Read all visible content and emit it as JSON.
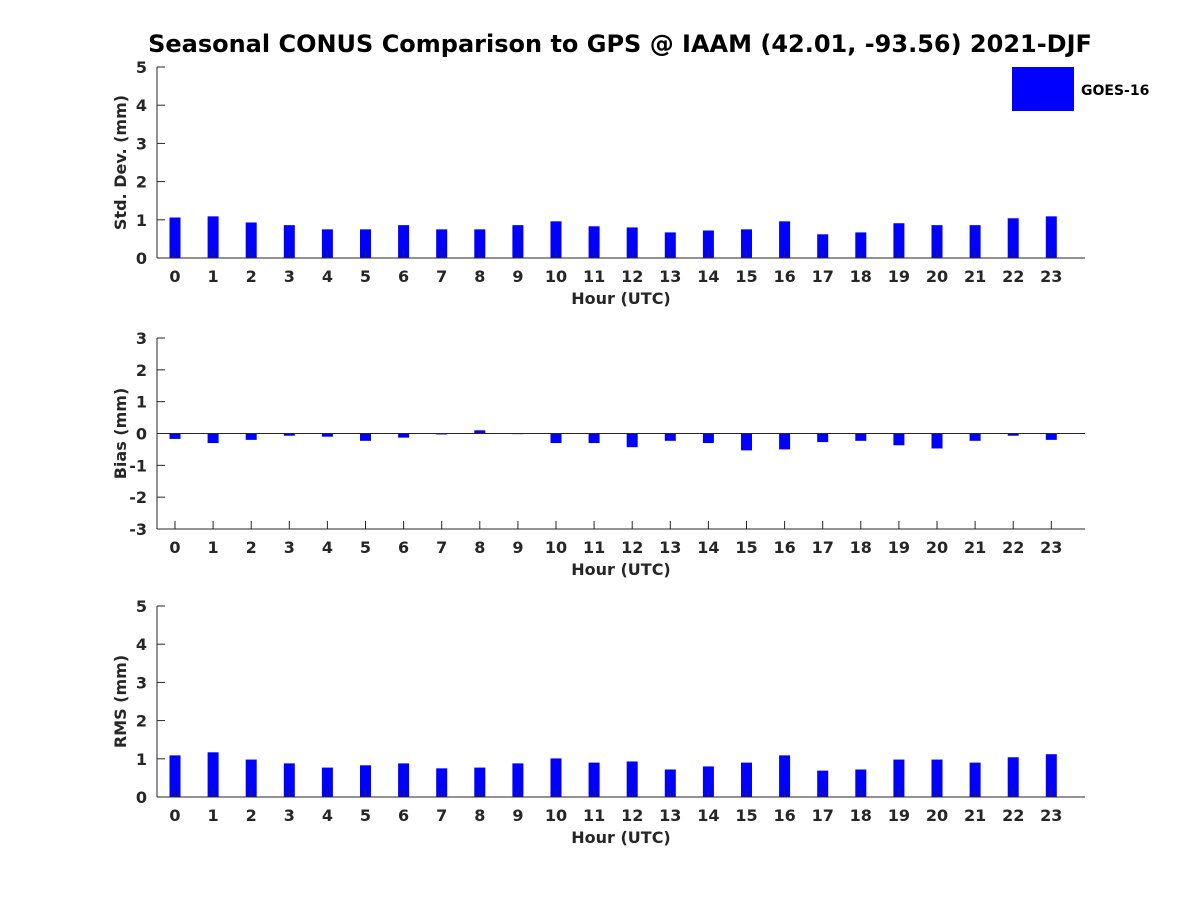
{
  "title": "Seasonal CONUS Comparison to GPS @ IAAM (42.01, -93.56) 2021-DJF",
  "colors": {
    "bar": "#0000ff",
    "axis": "#262626",
    "text": "#262626"
  },
  "legend": {
    "label": "GOES-16",
    "position": "top-right"
  },
  "chart_data": [
    {
      "type": "bar",
      "ylabel": "Std. Dev. (mm)",
      "xlabel": "Hour (UTC)",
      "ylim": [
        0,
        5
      ],
      "yticks": [
        0,
        1,
        2,
        3,
        4,
        5
      ],
      "categories": [
        "0",
        "1",
        "2",
        "3",
        "4",
        "5",
        "6",
        "7",
        "8",
        "9",
        "10",
        "11",
        "12",
        "13",
        "14",
        "15",
        "16",
        "17",
        "18",
        "19",
        "20",
        "21",
        "22",
        "23"
      ],
      "series": [
        {
          "name": "GOES-16",
          "values": [
            1.06,
            1.09,
            0.93,
            0.86,
            0.75,
            0.75,
            0.86,
            0.75,
            0.75,
            0.86,
            0.96,
            0.83,
            0.8,
            0.67,
            0.72,
            0.75,
            0.96,
            0.62,
            0.67,
            0.91,
            0.86,
            0.86,
            1.04,
            1.09
          ]
        }
      ],
      "grid": false,
      "legend": true
    },
    {
      "type": "bar",
      "ylabel": "Bias (mm)",
      "xlabel": "Hour (UTC)",
      "ylim": [
        -3,
        3
      ],
      "yticks": [
        -3,
        -2,
        -1,
        0,
        1,
        2,
        3
      ],
      "categories": [
        "0",
        "1",
        "2",
        "3",
        "4",
        "5",
        "6",
        "7",
        "8",
        "9",
        "10",
        "11",
        "12",
        "13",
        "14",
        "15",
        "16",
        "17",
        "18",
        "19",
        "20",
        "21",
        "22",
        "23"
      ],
      "series": [
        {
          "name": "GOES-16",
          "values": [
            -0.17,
            -0.3,
            -0.2,
            -0.07,
            -0.1,
            -0.23,
            -0.13,
            -0.03,
            0.1,
            -0.02,
            -0.3,
            -0.3,
            -0.43,
            -0.23,
            -0.3,
            -0.53,
            -0.5,
            -0.27,
            -0.23,
            -0.37,
            -0.47,
            -0.23,
            -0.07,
            -0.2
          ]
        }
      ],
      "grid": false,
      "legend": false
    },
    {
      "type": "bar",
      "ylabel": "RMS (mm)",
      "xlabel": "Hour (UTC)",
      "ylim": [
        0,
        5
      ],
      "yticks": [
        0,
        1,
        2,
        3,
        4,
        5
      ],
      "categories": [
        "0",
        "1",
        "2",
        "3",
        "4",
        "5",
        "6",
        "7",
        "8",
        "9",
        "10",
        "11",
        "12",
        "13",
        "14",
        "15",
        "16",
        "17",
        "18",
        "19",
        "20",
        "21",
        "22",
        "23"
      ],
      "series": [
        {
          "name": "GOES-16",
          "values": [
            1.09,
            1.17,
            0.98,
            0.88,
            0.77,
            0.83,
            0.88,
            0.75,
            0.77,
            0.88,
            1.01,
            0.9,
            0.93,
            0.72,
            0.8,
            0.9,
            1.09,
            0.69,
            0.72,
            0.98,
            0.98,
            0.9,
            1.04,
            1.12
          ]
        }
      ],
      "grid": false,
      "legend": false
    }
  ]
}
